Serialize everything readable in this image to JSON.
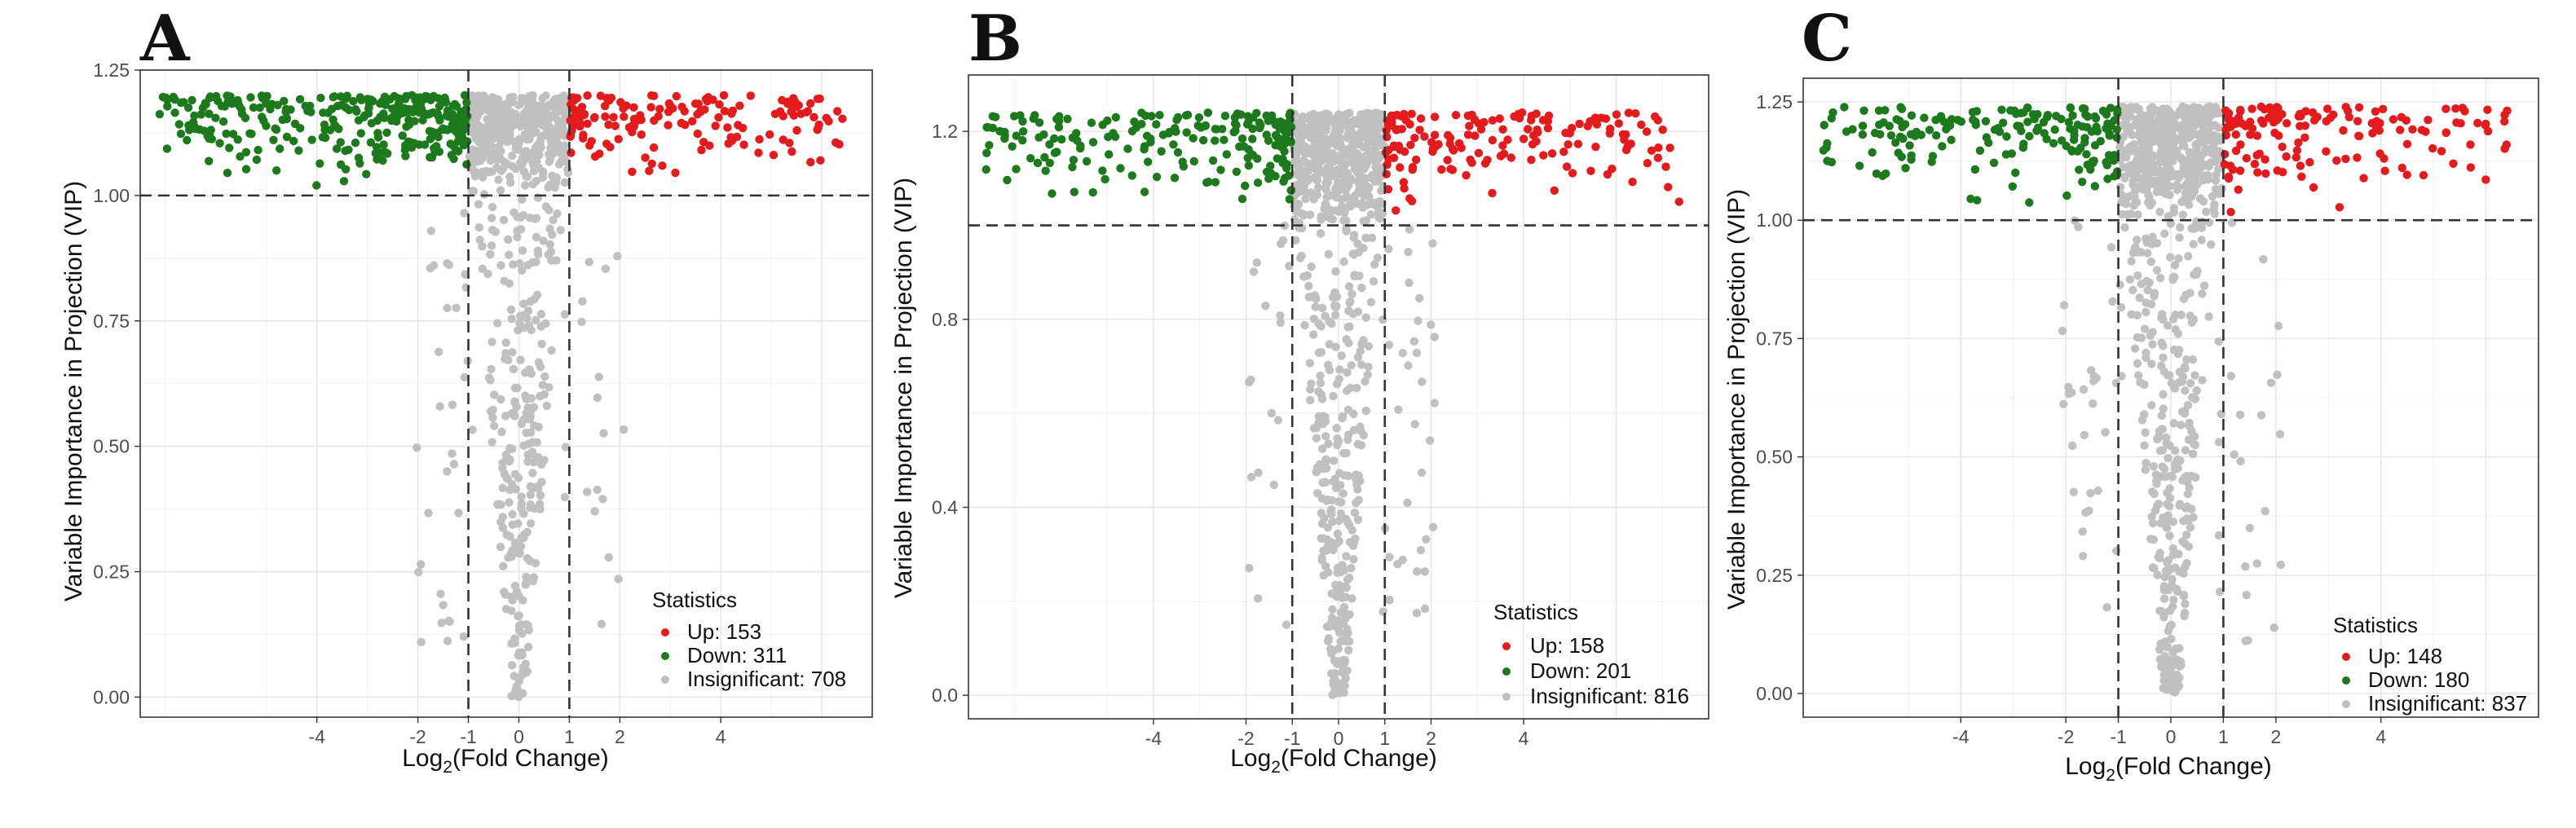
{
  "colors": {
    "up": "#e41a1c",
    "down": "#1c7a1c",
    "insignificant": "#c0c0c0"
  },
  "chart_data": [
    {
      "type": "scatter",
      "panel": "A",
      "xlabel_main": "Log",
      "xlabel_sub": "2",
      "xlabel_rest": "(Fold Change)",
      "ylabel": "Variable Importance in Projection (VIP)",
      "xlim": [
        -7.5,
        7
      ],
      "ylim": [
        -0.04,
        1.25
      ],
      "x_ticks": [
        -4,
        -2,
        -1,
        0,
        1,
        2,
        4
      ],
      "x_tick_labels": [
        "-4",
        "-2",
        "-1",
        "0",
        "1",
        "2",
        "4"
      ],
      "y_ticks": [
        0,
        0.25,
        0.5,
        0.75,
        1.0,
        1.25
      ],
      "y_tick_labels": [
        "0.00",
        "0.25",
        "0.50",
        "0.75",
        "1.00",
        "1.25"
      ],
      "vip_threshold": 1.0,
      "fc_thresholds": [
        -1,
        1
      ],
      "y_cap": 1.2,
      "legend_title": "Statistics",
      "legend": [
        "Up: 153",
        "Down: 311",
        "Insignificant: 708"
      ],
      "counts": {
        "up": 153,
        "down": 311,
        "insignificant": 708
      },
      "seed": 11
    },
    {
      "type": "scatter",
      "panel": "B",
      "xlabel_main": "Log",
      "xlabel_sub": "2",
      "xlabel_rest": "(Fold Change)",
      "ylabel": "Variable Importance in Projection (VIP)",
      "xlim": [
        -8,
        8
      ],
      "ylim": [
        -0.05,
        1.32
      ],
      "x_ticks": [
        -4,
        -2,
        -1,
        0,
        1,
        2,
        4
      ],
      "x_tick_labels": [
        "-4",
        "-2",
        "-1",
        "0",
        "1",
        "2",
        "4"
      ],
      "y_ticks": [
        0,
        0.4,
        0.8,
        1.2
      ],
      "y_tick_labels": [
        "0.0",
        "0.4",
        "0.8",
        "1.2"
      ],
      "vip_threshold": 1.0,
      "fc_thresholds": [
        -1,
        1
      ],
      "y_cap": 1.24,
      "legend_title": "Statistics",
      "legend": [
        "Up: 158",
        "Down: 201",
        "Insignificant: 816"
      ],
      "counts": {
        "up": 158,
        "down": 201,
        "insignificant": 816
      },
      "seed": 23
    },
    {
      "type": "scatter",
      "panel": "C",
      "xlabel_main": "Log",
      "xlabel_sub": "2",
      "xlabel_rest": "(Fold Change)",
      "ylabel": "Variable Importance in Projection (VIP)",
      "xlim": [
        -7,
        7
      ],
      "ylim": [
        -0.05,
        1.3
      ],
      "x_ticks": [
        -4,
        -2,
        -1,
        0,
        1,
        2,
        4
      ],
      "x_tick_labels": [
        "-4",
        "-2",
        "-1",
        "0",
        "1",
        "2",
        "4"
      ],
      "y_ticks": [
        0,
        0.25,
        0.5,
        0.75,
        1.0,
        1.25
      ],
      "y_tick_labels": [
        "0.00",
        "0.25",
        "0.50",
        "0.75",
        "1.00",
        "1.25"
      ],
      "vip_threshold": 1.0,
      "fc_thresholds": [
        -1,
        1
      ],
      "y_cap": 1.24,
      "legend_title": "Statistics",
      "legend": [
        "Up: 148",
        "Down: 180",
        "Insignificant: 837"
      ],
      "counts": {
        "up": 148,
        "down": 180,
        "insignificant": 837
      },
      "seed": 37
    }
  ]
}
